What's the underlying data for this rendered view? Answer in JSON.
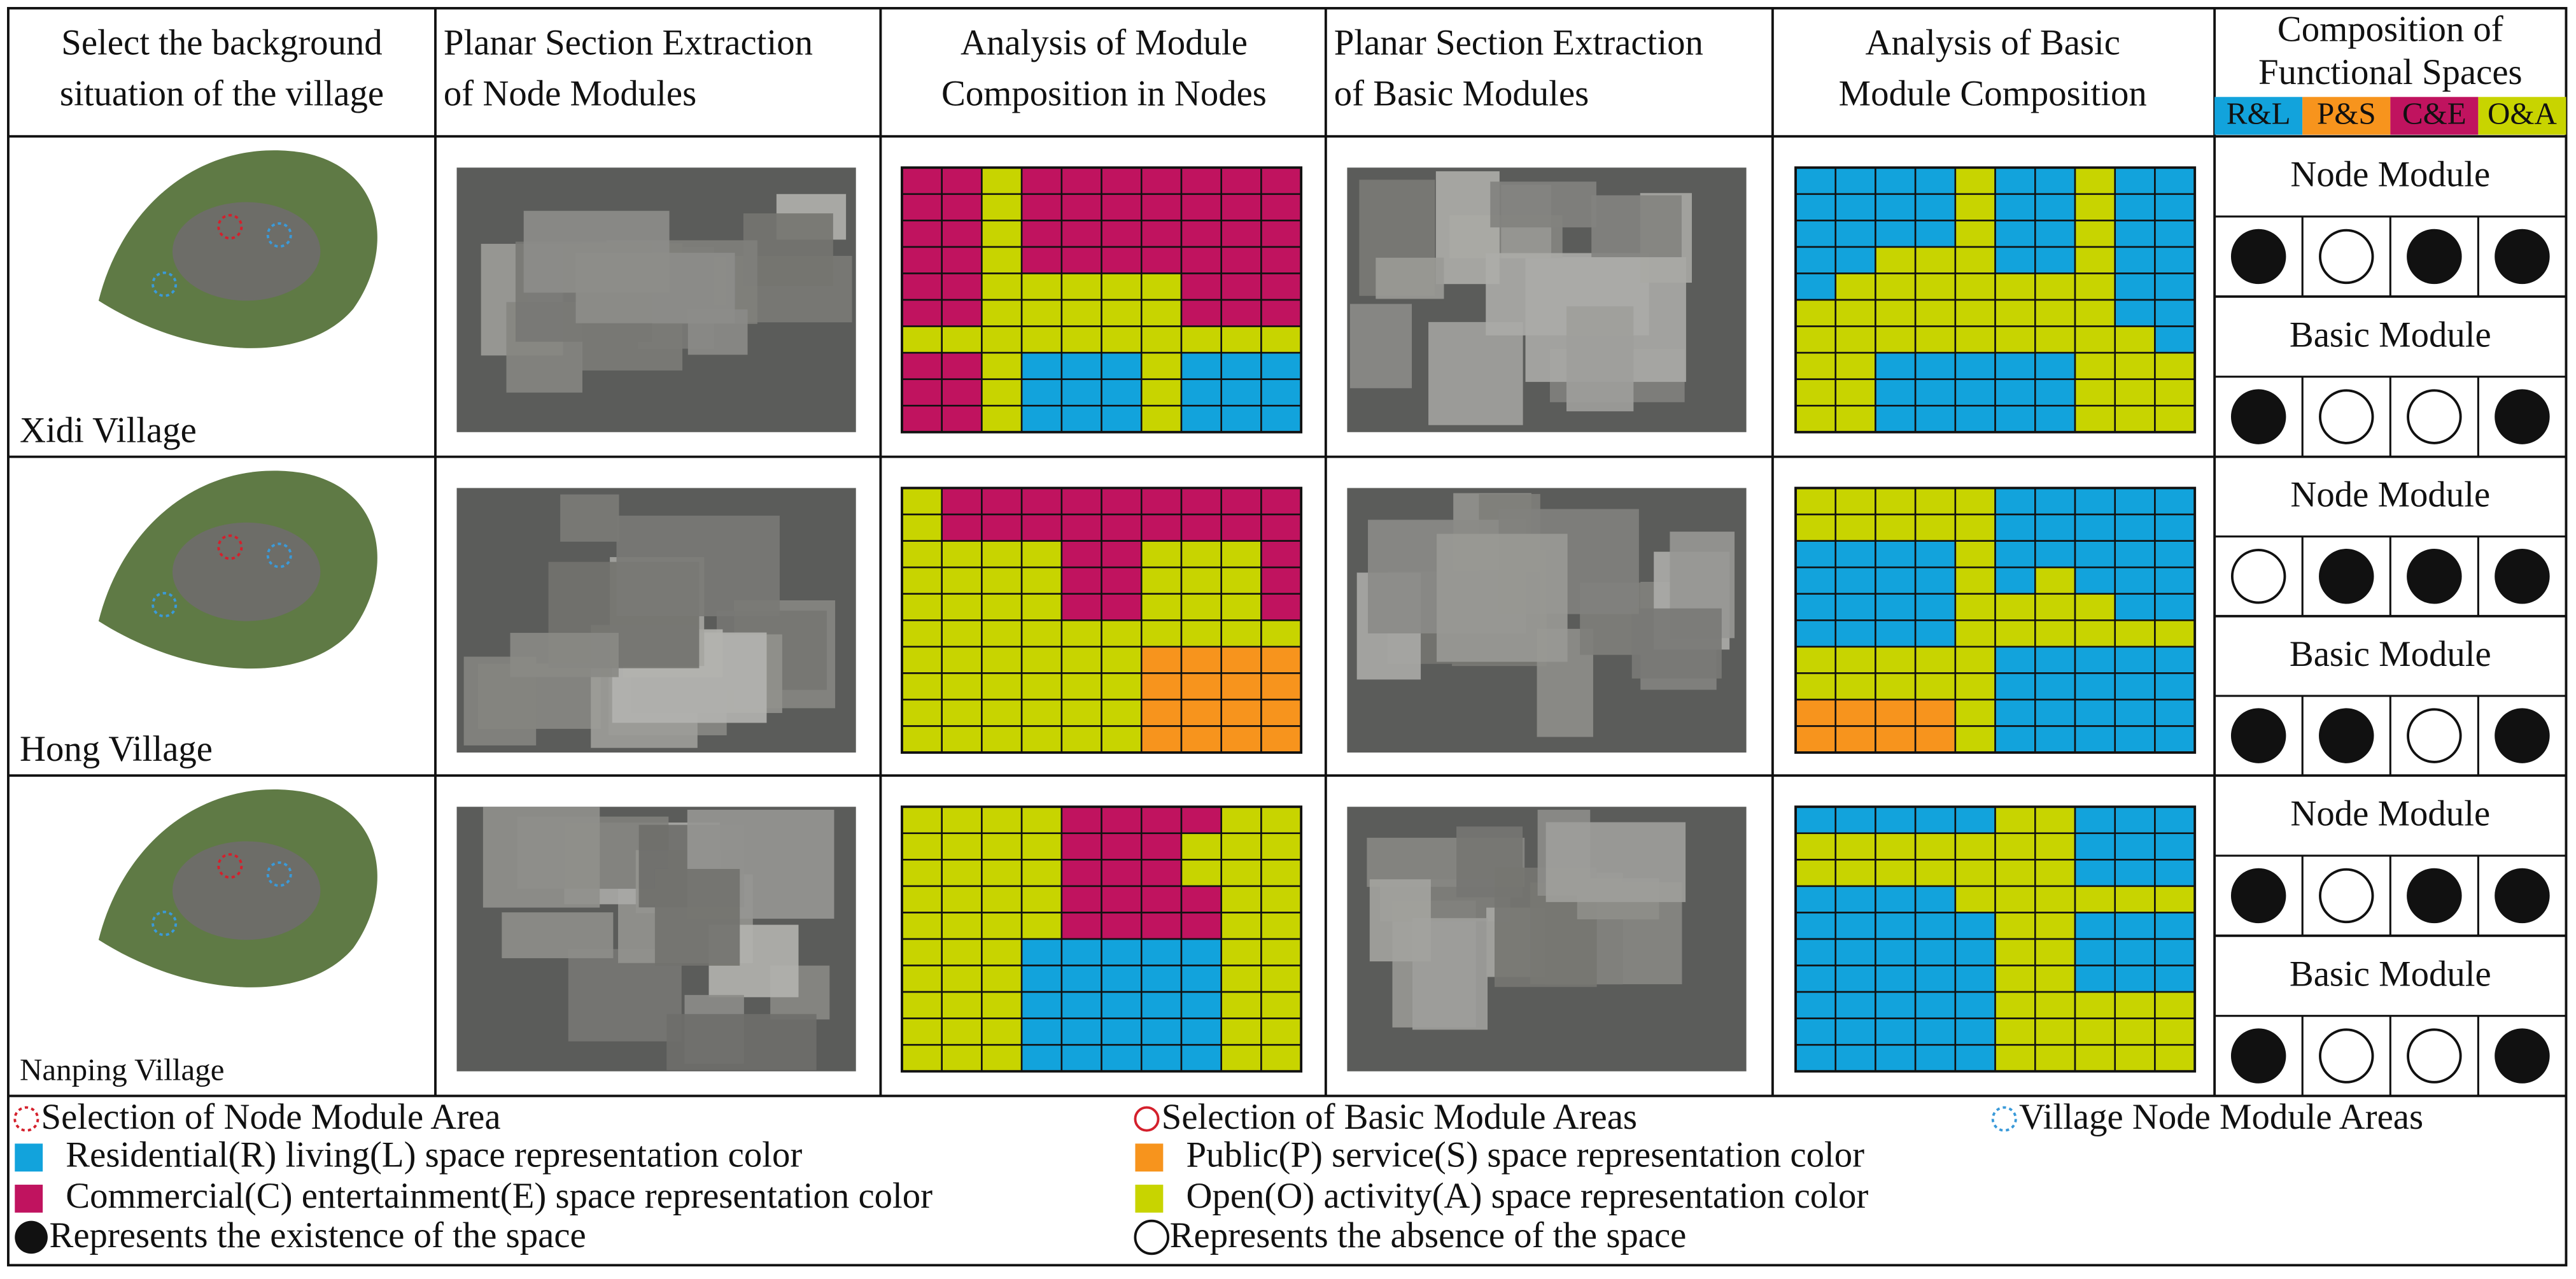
{
  "headers": [
    [
      "Select the background",
      "situation of the village"
    ],
    [
      "Planar Section Extraction",
      "of Node Modules"
    ],
    [
      "Analysis of Module",
      "Composition in Nodes"
    ],
    [
      "Planar Section Extraction",
      "of Basic Modules"
    ],
    [
      "Analysis of Basic",
      "Module Composition"
    ],
    [
      "Composition of",
      "Functional Spaces"
    ]
  ],
  "space_codes": [
    {
      "code": "R&L",
      "color": "#12a3dc"
    },
    {
      "code": "P&S",
      "color": "#f7941d"
    },
    {
      "code": "C&E",
      "color": "#c0135f"
    },
    {
      "code": "O&A",
      "color": "#c8d400"
    }
  ],
  "rows": [
    {
      "village": "Xidi Village",
      "node_grid": [
        "CCOCCCCCCC",
        "CCOCCCCCCC",
        "CCOCCCCCCC",
        "CCOCCCCCCC",
        "CCOOOOOCCC",
        "CCOOOOOCCC",
        "OOOOOOOOOO",
        "CCORRRORRR",
        "CCORRRORRR",
        "CCORRRORRR"
      ],
      "basic_grid": [
        "RRRRORRORR",
        "RRRRORRORR",
        "RRRRORRORR",
        "RROOORRORR",
        "ROOOOOOORR",
        "OOOOOOOORR",
        "OOOOOOOOOR",
        "OORRRRROOO",
        "OORRRRROOO",
        "OORRRRROOO"
      ],
      "node_label": "Node Module",
      "node_presence": [
        true,
        false,
        true,
        true
      ],
      "basic_label": "Basic Module",
      "basic_presence": [
        true,
        false,
        false,
        true
      ]
    },
    {
      "village": "Hong Village",
      "node_grid": [
        "OCCCCCCCCC",
        "OCCCCCCCCC",
        "OOOOCCOOOC",
        "OOOOCCOOOC",
        "OOOOCCOOOC",
        "OOOOOOOOOO",
        "OOOOOOPPPP",
        "OOOOOOPPPP",
        "OOOOOOPPPP",
        "OOOOOOPPPP"
      ],
      "basic_grid": [
        "OOOOORRRRR",
        "OOOOORRRRR",
        "RRRRORRRRR",
        "RRRRORORRR",
        "RRRROOOORR",
        "RRRROOOOOO",
        "OOOOORRRRR",
        "OOOOORRRRR",
        "PPPPORRRRR",
        "PPPPORRRRR"
      ],
      "node_label": "Node Module",
      "node_presence": [
        false,
        true,
        true,
        true
      ],
      "basic_label": "Basic Module",
      "basic_presence": [
        true,
        true,
        false,
        true
      ]
    },
    {
      "village": "Nanping Village",
      "node_grid": [
        "OOOOCCCCOO",
        "OOOOCCCOOO",
        "OOOOCCCOOO",
        "OOOOCCCCOO",
        "OOOOCCCCOO",
        "OOORRRRROO",
        "OOORRRRROO",
        "OOORRRRROO",
        "OOORRRRROO",
        "OOORRRRROO"
      ],
      "basic_grid": [
        "RRRRROORRR",
        "OOOOOOORRR",
        "OOOOOOORRR",
        "RRRROOOOOO",
        "RRRRROORRR",
        "RRRRROORRR",
        "RRRRROORRR",
        "RRRRROOOOO",
        "RRRRROOOOO",
        "RRRRROOOOO"
      ],
      "node_label": "Node Module",
      "node_presence": [
        true,
        false,
        true,
        true
      ],
      "basic_label": "Basic Module",
      "basic_presence": [
        true,
        false,
        false,
        true
      ]
    }
  ],
  "legend": [
    "Selection of Node Module Area",
    "Selection of Basic Module Areas",
    "Village Node Module Areas",
    "Residential(R) living(L) space representation color",
    "Public(P) service(S) space representation color",
    "Commercial(C) entertainment(E) space representation color",
    "Open(O) activity(A) space representation color",
    "Represents the existence of the space",
    "Represents the absence of the space"
  ]
}
